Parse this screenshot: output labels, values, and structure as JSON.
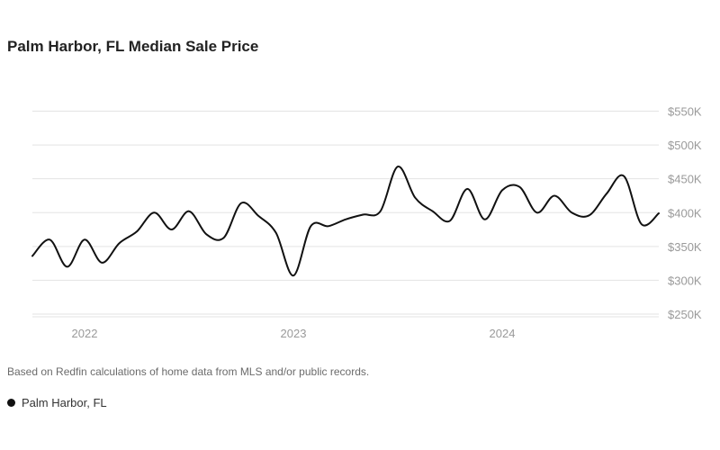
{
  "chart_data": {
    "type": "line",
    "title": "Palm Harbor, FL Median Sale Price",
    "xlabel": "",
    "ylabel": "",
    "x_tick_labels": [
      "2022",
      "2023",
      "2024"
    ],
    "y_tick_labels": [
      "$250K",
      "$300K",
      "$350K",
      "$400K",
      "$450K",
      "$500K",
      "$550K"
    ],
    "y_ticks": [
      250,
      300,
      350,
      400,
      450,
      500,
      550
    ],
    "ylim": [
      250,
      550
    ],
    "x_ticks": [
      "2022-01",
      "2023-01",
      "2024-01"
    ],
    "grid": true,
    "legend_position": "bottom-left",
    "series": [
      {
        "name": "Palm Harbor, FL",
        "color": "#111111",
        "points": [
          [
            "2021-10",
            336
          ],
          [
            "2021-11",
            360
          ],
          [
            "2021-12",
            320
          ],
          [
            "2022-01",
            360
          ],
          [
            "2022-02",
            326
          ],
          [
            "2022-03",
            355
          ],
          [
            "2022-04",
            372
          ],
          [
            "2022-05",
            400
          ],
          [
            "2022-06",
            375
          ],
          [
            "2022-07",
            402
          ],
          [
            "2022-08",
            368
          ],
          [
            "2022-09",
            363
          ],
          [
            "2022-10",
            414
          ],
          [
            "2022-11",
            395
          ],
          [
            "2022-12",
            370
          ],
          [
            "2023-01",
            307
          ],
          [
            "2023-02",
            380
          ],
          [
            "2023-03",
            380
          ],
          [
            "2023-04",
            390
          ],
          [
            "2023-05",
            397
          ],
          [
            "2023-06",
            402
          ],
          [
            "2023-07",
            468
          ],
          [
            "2023-08",
            422
          ],
          [
            "2023-09",
            402
          ],
          [
            "2023-10",
            388
          ],
          [
            "2023-11",
            435
          ],
          [
            "2023-12",
            390
          ],
          [
            "2024-01",
            433
          ],
          [
            "2024-02",
            438
          ],
          [
            "2024-03",
            400
          ],
          [
            "2024-04",
            425
          ],
          [
            "2024-05",
            400
          ],
          [
            "2024-06",
            396
          ],
          [
            "2024-07",
            428
          ],
          [
            "2024-08",
            454
          ],
          [
            "2024-09",
            383
          ],
          [
            "2024-10",
            399
          ]
        ]
      }
    ]
  },
  "footnote": "Based on Redfin calculations of home data from MLS and/or public records.",
  "legend": [
    {
      "label": "Palm Harbor, FL",
      "color": "#111111"
    }
  ]
}
